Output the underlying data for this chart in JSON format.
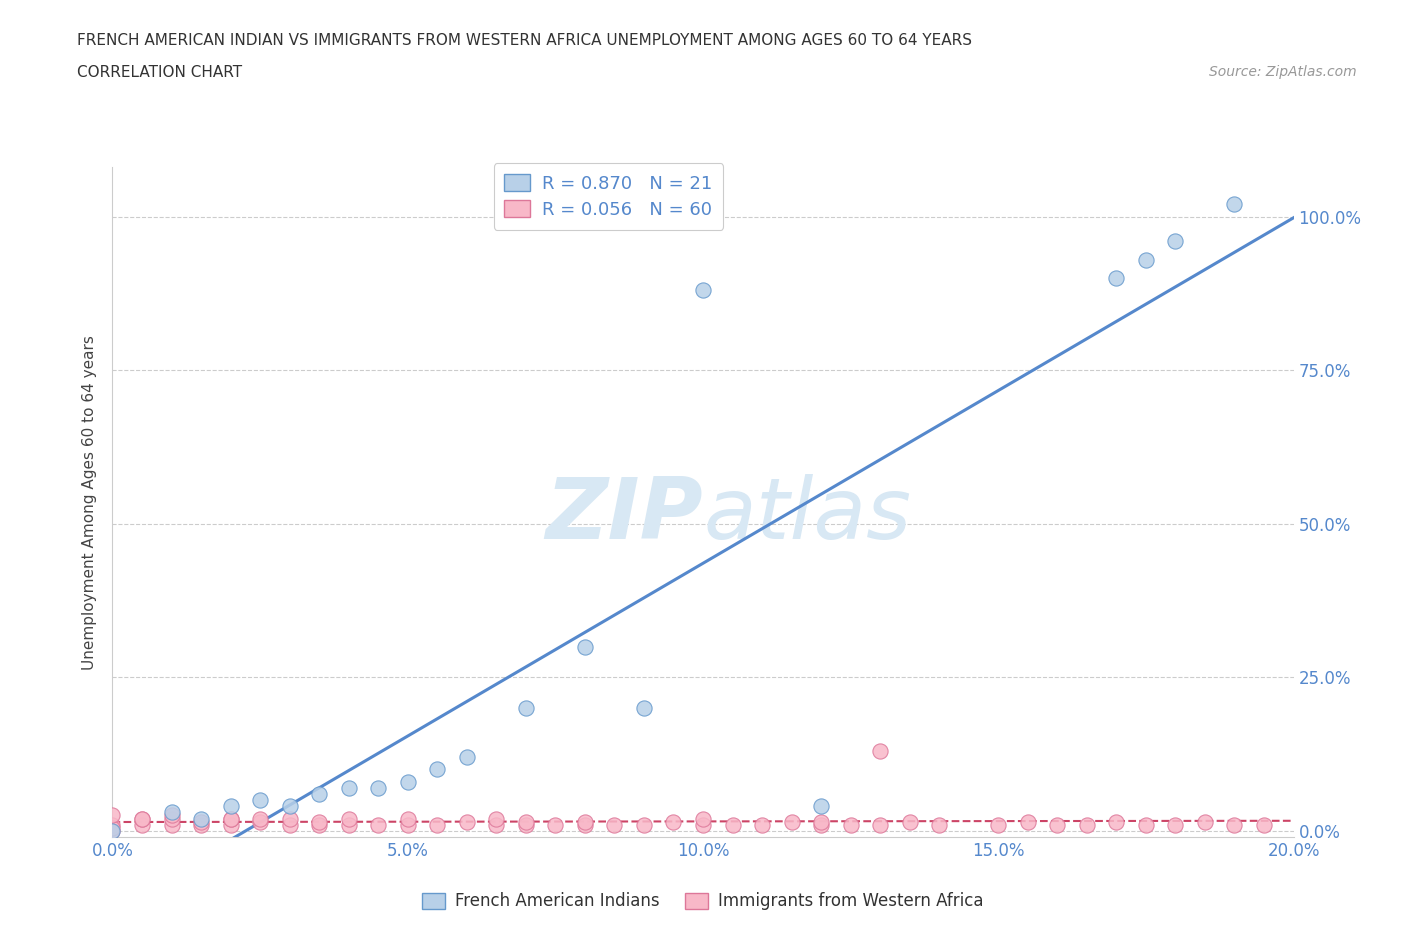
{
  "title_line1": "FRENCH AMERICAN INDIAN VS IMMIGRANTS FROM WESTERN AFRICA UNEMPLOYMENT AMONG AGES 60 TO 64 YEARS",
  "title_line2": "CORRELATION CHART",
  "source_text": "Source: ZipAtlas.com",
  "ylabel": "Unemployment Among Ages 60 to 64 years",
  "xlim": [
    0.0,
    0.2
  ],
  "ylim": [
    -0.01,
    1.08
  ],
  "xtick_labels": [
    "0.0%",
    "5.0%",
    "10.0%",
    "15.0%",
    "20.0%"
  ],
  "xtick_values": [
    0.0,
    0.05,
    0.1,
    0.15,
    0.2
  ],
  "ytick_labels": [
    "0.0%",
    "25.0%",
    "50.0%",
    "75.0%",
    "100.0%"
  ],
  "ytick_values": [
    0.0,
    0.25,
    0.5,
    0.75,
    1.0
  ],
  "blue_R": 0.87,
  "blue_N": 21,
  "pink_R": 0.056,
  "pink_N": 60,
  "blue_color": "#b8d0e8",
  "pink_color": "#f8b8c8",
  "blue_edge_color": "#6699cc",
  "pink_edge_color": "#dd7799",
  "blue_line_color": "#5588cc",
  "pink_line_color": "#cc4466",
  "tick_color": "#5588cc",
  "watermark_color": "#d8e8f4",
  "legend_label_blue": "French American Indians",
  "legend_label_pink": "Immigrants from Western Africa",
  "blue_scatter_x": [
    0.0,
    0.01,
    0.015,
    0.02,
    0.025,
    0.03,
    0.035,
    0.04,
    0.045,
    0.05,
    0.055,
    0.06,
    0.07,
    0.08,
    0.09,
    0.1,
    0.12,
    0.17,
    0.175,
    0.18,
    0.19
  ],
  "blue_scatter_y": [
    0.0,
    0.03,
    0.02,
    0.04,
    0.05,
    0.04,
    0.06,
    0.07,
    0.07,
    0.08,
    0.1,
    0.12,
    0.2,
    0.3,
    0.2,
    0.88,
    0.04,
    0.9,
    0.93,
    0.96,
    1.02
  ],
  "pink_scatter_x": [
    0.0,
    0.0,
    0.0,
    0.005,
    0.005,
    0.01,
    0.01,
    0.015,
    0.015,
    0.02,
    0.02,
    0.025,
    0.025,
    0.03,
    0.03,
    0.035,
    0.035,
    0.04,
    0.04,
    0.045,
    0.05,
    0.05,
    0.055,
    0.06,
    0.065,
    0.065,
    0.07,
    0.07,
    0.075,
    0.08,
    0.08,
    0.085,
    0.09,
    0.095,
    0.1,
    0.1,
    0.105,
    0.11,
    0.115,
    0.12,
    0.12,
    0.125,
    0.13,
    0.135,
    0.14,
    0.15,
    0.155,
    0.16,
    0.165,
    0.17,
    0.175,
    0.18,
    0.185,
    0.19,
    0.195,
    0.0,
    0.005,
    0.01,
    0.02,
    0.13
  ],
  "pink_scatter_y": [
    0.0,
    0.01,
    0.005,
    0.01,
    0.02,
    0.01,
    0.02,
    0.01,
    0.015,
    0.01,
    0.02,
    0.015,
    0.02,
    0.01,
    0.02,
    0.01,
    0.015,
    0.01,
    0.02,
    0.01,
    0.01,
    0.02,
    0.01,
    0.015,
    0.01,
    0.02,
    0.01,
    0.015,
    0.01,
    0.01,
    0.015,
    0.01,
    0.01,
    0.015,
    0.01,
    0.02,
    0.01,
    0.01,
    0.015,
    0.01,
    0.015,
    0.01,
    0.01,
    0.015,
    0.01,
    0.01,
    0.015,
    0.01,
    0.01,
    0.015,
    0.01,
    0.01,
    0.015,
    0.01,
    0.01,
    0.025,
    0.02,
    0.025,
    0.02,
    0.13
  ],
  "background_color": "#ffffff",
  "grid_color": "#cccccc",
  "spine_color": "#cccccc"
}
